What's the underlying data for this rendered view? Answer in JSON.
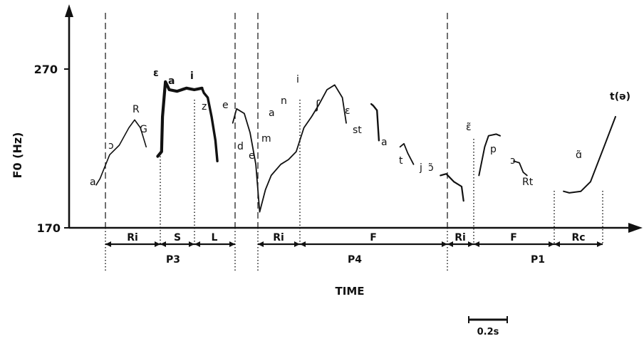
{
  "chart_data": {
    "type": "line",
    "title": "",
    "xlabel": "TIME",
    "ylabel": "F0 (Hz)",
    "ylim": [
      170,
      270
    ],
    "yticks": [
      170,
      270
    ],
    "scale_bar": "0.2s",
    "x_unit_note": "time in seconds estimated from 0.2s scale bar",
    "segments": [
      {
        "name": "",
        "points": [
          [
            0.0,
            197
          ],
          [
            0.02,
            201
          ],
          [
            0.07,
            216
          ],
          [
            0.12,
            222
          ],
          [
            0.17,
            233
          ],
          [
            0.2,
            238
          ],
          [
            0.23,
            233
          ],
          [
            0.26,
            221
          ]
        ]
      },
      {
        "name": "",
        "points": [
          [
            0.32,
            215
          ],
          [
            0.34,
            218
          ],
          [
            0.345,
            240
          ],
          [
            0.36,
            262
          ],
          [
            0.38,
            257
          ],
          [
            0.42,
            256
          ],
          [
            0.47,
            258
          ],
          [
            0.51,
            257
          ],
          [
            0.55,
            258
          ]
        ]
      },
      {
        "name": "",
        "points": [
          [
            0.55,
            258
          ],
          [
            0.56,
            255
          ],
          [
            0.58,
            252
          ],
          [
            0.6,
            240
          ],
          [
            0.62,
            225
          ],
          [
            0.63,
            212
          ]
        ]
      },
      {
        "name": "",
        "points": [
          [
            0.71,
            236
          ],
          [
            0.73,
            245
          ],
          [
            0.77,
            242
          ],
          [
            0.8,
            230
          ],
          [
            0.83,
            210
          ],
          [
            0.85,
            180
          ],
          [
            0.88,
            194
          ],
          [
            0.91,
            203
          ],
          [
            0.96,
            210
          ],
          [
            1.0,
            213
          ],
          [
            1.04,
            218
          ],
          [
            1.08,
            233
          ],
          [
            1.12,
            240
          ],
          [
            1.16,
            248
          ],
          [
            1.2,
            257
          ],
          [
            1.24,
            260
          ],
          [
            1.28,
            252
          ],
          [
            1.3,
            236
          ]
        ]
      },
      {
        "name": "",
        "points": [
          [
            1.43,
            248
          ],
          [
            1.44,
            247
          ],
          [
            1.46,
            244
          ],
          [
            1.47,
            225
          ]
        ]
      },
      {
        "name": "",
        "points": [
          [
            1.58,
            221
          ],
          [
            1.6,
            223
          ],
          [
            1.62,
            217
          ],
          [
            1.65,
            210
          ]
        ]
      },
      {
        "name": "",
        "points": [
          [
            1.79,
            203
          ],
          [
            1.82,
            204
          ],
          [
            1.86,
            199
          ],
          [
            1.9,
            196
          ],
          [
            1.91,
            187
          ]
        ]
      },
      {
        "name": "",
        "points": [
          [
            1.99,
            203
          ],
          [
            2.02,
            221
          ],
          [
            2.04,
            228
          ],
          [
            2.08,
            229
          ],
          [
            2.1,
            228
          ]
        ]
      },
      {
        "name": "",
        "points": [
          [
            2.17,
            212
          ],
          [
            2.2,
            211
          ],
          [
            2.22,
            205
          ],
          [
            2.24,
            203
          ]
        ]
      },
      {
        "name": "",
        "points": [
          [
            2.43,
            193
          ],
          [
            2.46,
            192
          ],
          [
            2.52,
            193
          ],
          [
            2.57,
            199
          ],
          [
            2.64,
            221
          ],
          [
            2.7,
            240
          ]
        ]
      }
    ],
    "phoneme_labels": [
      "a",
      "ɔ",
      "R",
      "G",
      "ɛ",
      "a",
      "i",
      "z",
      "e",
      "d",
      "e",
      "m",
      "a",
      "n",
      "i",
      "ʃ",
      "ɛ",
      "st",
      "a",
      "t",
      "j",
      "ɔ̃",
      "ɛ̃",
      "p",
      "ɔ",
      "Rt",
      "ɑ̃",
      "t(ə)"
    ],
    "interval_labels": [
      "Ri",
      "S",
      "L",
      "Ri",
      "F",
      "Ri",
      "F",
      "Rc"
    ],
    "group_labels": [
      "P3",
      "P4",
      "P1"
    ]
  }
}
